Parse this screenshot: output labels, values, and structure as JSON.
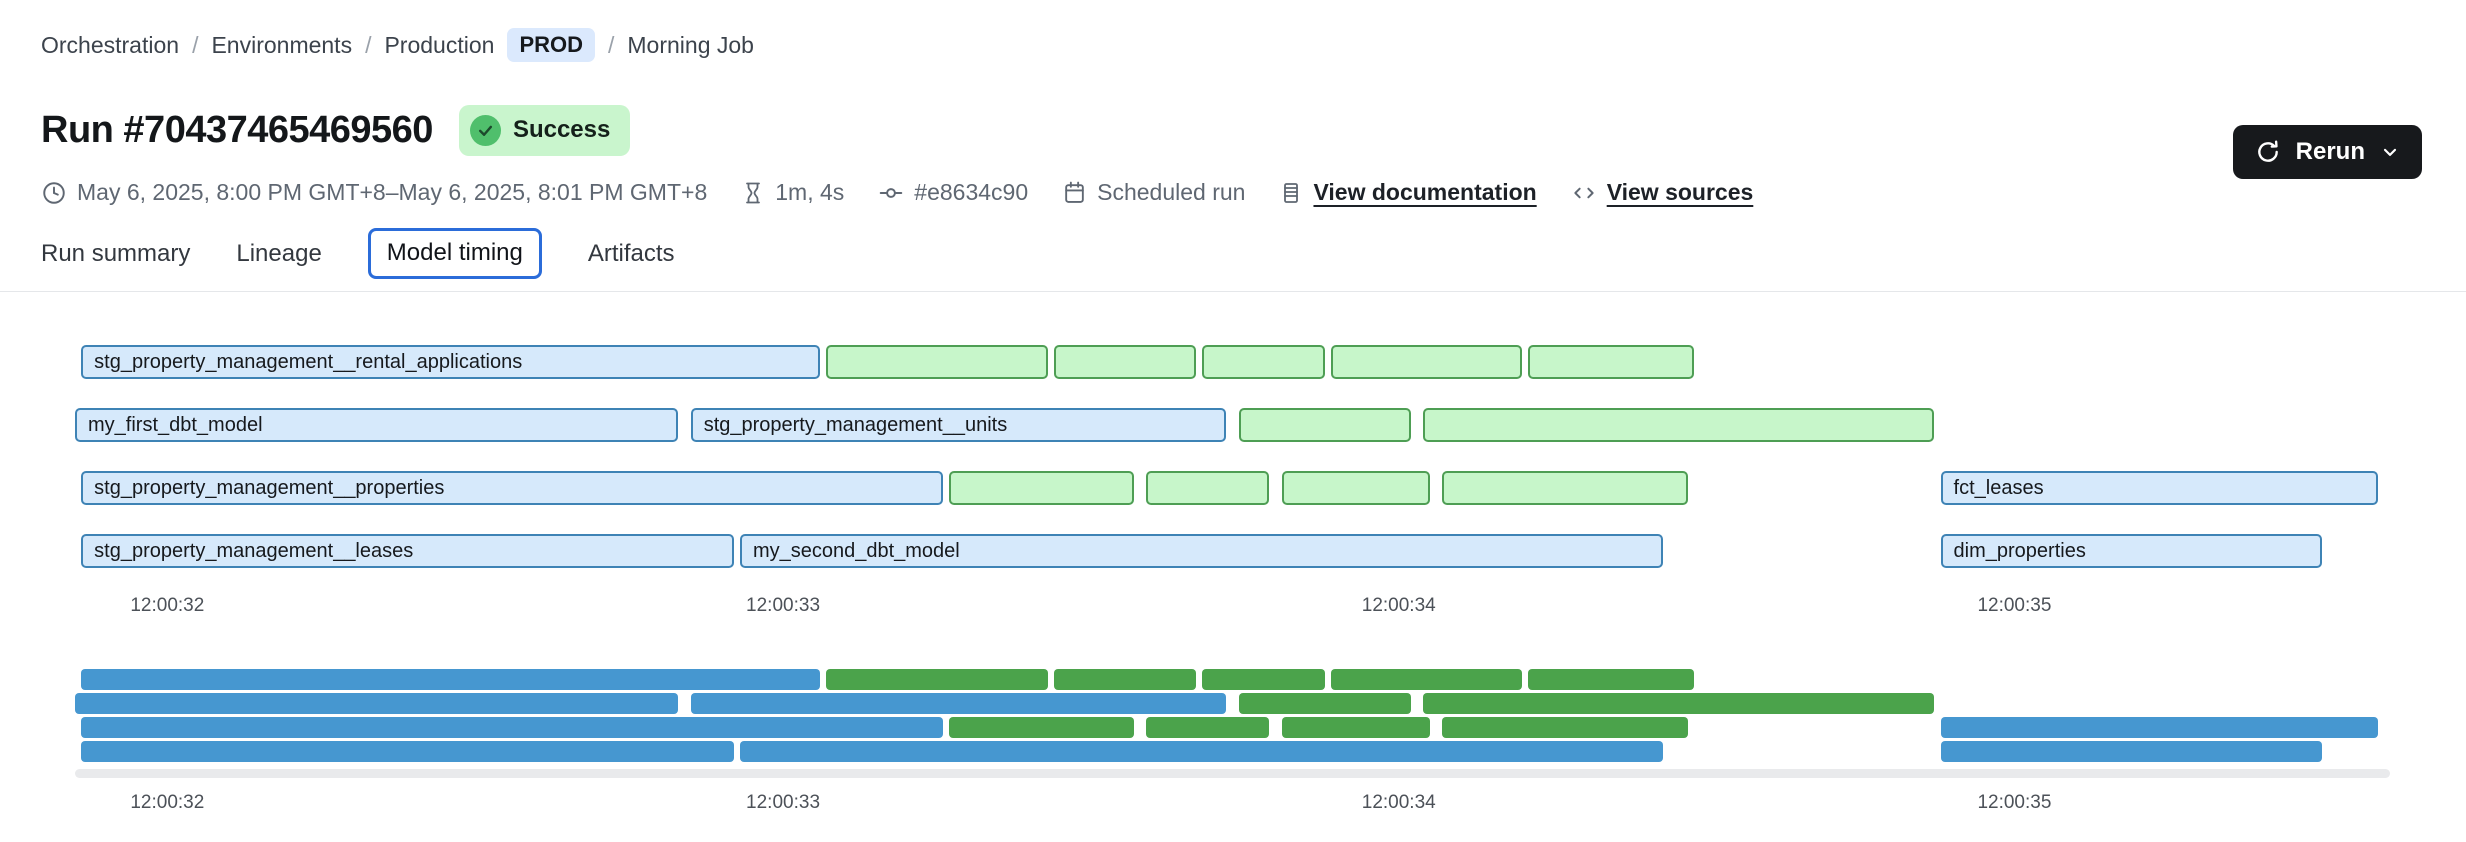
{
  "breadcrumb": {
    "items": [
      {
        "label": "Orchestration"
      },
      {
        "label": "Environments"
      },
      {
        "label": "Production",
        "badge": "PROD"
      },
      {
        "label": "Morning Job"
      }
    ]
  },
  "header": {
    "title": "Run #70437465469560",
    "status": "Success",
    "rerun_label": "Rerun"
  },
  "meta": {
    "time_range": "May 6, 2025, 8:00 PM GMT+8–May 6, 2025, 8:01 PM GMT+8",
    "duration": "1m, 4s",
    "commit": "#e8634c90",
    "trigger": "Scheduled run",
    "docs_link": "View documentation",
    "sources_link": "View sources"
  },
  "tabs": [
    {
      "label": "Run summary",
      "selected": false
    },
    {
      "label": "Lineage",
      "selected": false
    },
    {
      "label": "Model timing",
      "selected": true
    },
    {
      "label": "Artifacts",
      "selected": false
    }
  ],
  "chart_data": {
    "type": "bar",
    "variant": "gantt-timeline",
    "title": "Model timing",
    "x_axis": {
      "unit": "time of day (hh:mm:ss)",
      "domain_seconds": [
        31.85,
        35.61
      ],
      "ticks": [
        {
          "t": 32,
          "label": "12:00:32"
        },
        {
          "t": 33,
          "label": "12:00:33"
        },
        {
          "t": 34,
          "label": "12:00:34"
        },
        {
          "t": 35,
          "label": "12:00:35"
        }
      ]
    },
    "colors": {
      "model_fill": "#d6e9fb",
      "model_border": "#3e83b5",
      "test_fill": "#c7f6ca",
      "test_border": "#4e9e54",
      "minimap_model": "#4697d0",
      "minimap_test": "#4ba34b",
      "accent_tab": "#2b6cd9",
      "success_bg": "#c9f5cd",
      "success_dot": "#50bf6c"
    },
    "rows": [
      [
        {
          "name": "stg_property_management__rental_applications",
          "kind": "model",
          "start": 31.86,
          "end": 33.06
        },
        {
          "name": "",
          "kind": "test",
          "start": 33.07,
          "end": 33.43
        },
        {
          "name": "",
          "kind": "test",
          "start": 33.44,
          "end": 33.67
        },
        {
          "name": "",
          "kind": "test",
          "start": 33.68,
          "end": 33.88
        },
        {
          "name": "",
          "kind": "test",
          "start": 33.89,
          "end": 34.2
        },
        {
          "name": "",
          "kind": "test",
          "start": 34.21,
          "end": 34.48
        }
      ],
      [
        {
          "name": "my_first_dbt_model",
          "kind": "model",
          "start": 31.85,
          "end": 32.83
        },
        {
          "name": "stg_property_management__units",
          "kind": "model",
          "start": 32.85,
          "end": 33.72
        },
        {
          "name": "",
          "kind": "test",
          "start": 33.74,
          "end": 34.02
        },
        {
          "name": "",
          "kind": "test",
          "start": 34.04,
          "end": 34.87
        }
      ],
      [
        {
          "name": "stg_property_management__properties",
          "kind": "model",
          "start": 31.86,
          "end": 33.26
        },
        {
          "name": "",
          "kind": "test",
          "start": 33.27,
          "end": 33.57
        },
        {
          "name": "",
          "kind": "test",
          "start": 33.59,
          "end": 33.79
        },
        {
          "name": "",
          "kind": "test",
          "start": 33.81,
          "end": 34.05
        },
        {
          "name": "",
          "kind": "test",
          "start": 34.07,
          "end": 34.47
        },
        {
          "name": "fct_leases",
          "kind": "model",
          "start": 34.88,
          "end": 35.59
        }
      ],
      [
        {
          "name": "stg_property_management__leases",
          "kind": "model",
          "start": 31.86,
          "end": 32.92
        },
        {
          "name": "my_second_dbt_model",
          "kind": "model",
          "start": 32.93,
          "end": 34.43
        },
        {
          "name": "dim_properties",
          "kind": "model",
          "start": 34.88,
          "end": 35.5
        }
      ]
    ],
    "minimap_mirrors_rows": true,
    "legend": null,
    "grid": false
  }
}
